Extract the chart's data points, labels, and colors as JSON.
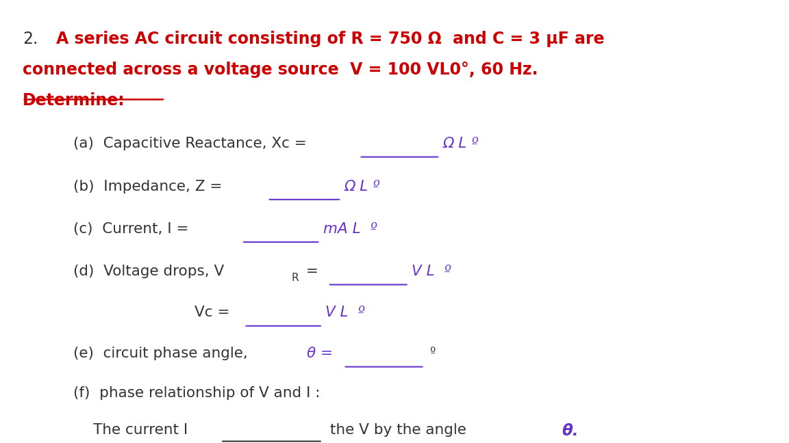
{
  "background_color": "#ffffff",
  "fig_width": 11.52,
  "fig_height": 6.48,
  "title_color": "#cc0000",
  "body_color": "#333333",
  "purple_color": "#6633cc",
  "number": "2.",
  "line1": "A series AC circuit consisting of R = 750 Ω  and C = 3 μF are",
  "line2": "connected across a voltage source  V = 100 VL0°, 60 Hz.",
  "line3": "Determine:",
  "font_size_title": 17,
  "font_size_body": 15.5
}
